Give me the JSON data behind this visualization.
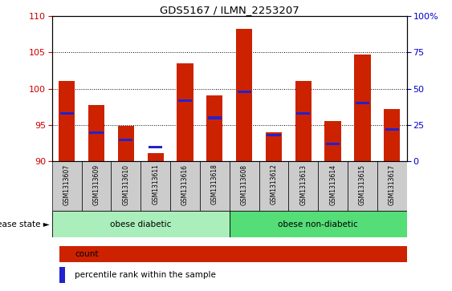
{
  "title": "GDS5167 / ILMN_2253207",
  "samples": [
    "GSM1313607",
    "GSM1313609",
    "GSM1313610",
    "GSM1313611",
    "GSM1313616",
    "GSM1313618",
    "GSM1313608",
    "GSM1313612",
    "GSM1313613",
    "GSM1313614",
    "GSM1313615",
    "GSM1313617"
  ],
  "counts": [
    101.1,
    97.8,
    94.9,
    91.2,
    103.5,
    99.1,
    108.2,
    94.0,
    101.1,
    95.6,
    104.7,
    97.2
  ],
  "percentile_ranks": [
    33,
    20,
    15,
    10,
    42,
    30,
    48,
    18,
    33,
    12,
    40,
    22
  ],
  "ylim_left": [
    90,
    110
  ],
  "ylim_right": [
    0,
    100
  ],
  "yticks_left": [
    90,
    95,
    100,
    105,
    110
  ],
  "yticks_right": [
    0,
    25,
    50,
    75,
    100
  ],
  "bar_color": "#cc2200",
  "marker_color": "#2222cc",
  "grid_color": "#000000",
  "bg_color": "#ffffff",
  "tick_bg": "#cccccc",
  "group1_label": "obese diabetic",
  "group2_label": "obese non-diabetic",
  "group1_count": 6,
  "group2_count": 6,
  "group1_color": "#aaeebb",
  "group2_color": "#55dd77",
  "legend_count_label": "count",
  "legend_pct_label": "percentile rank within the sample",
  "disease_state_label": "disease state",
  "left_axis_color": "#cc0000",
  "right_axis_color": "#0000cc",
  "bar_width": 0.55
}
